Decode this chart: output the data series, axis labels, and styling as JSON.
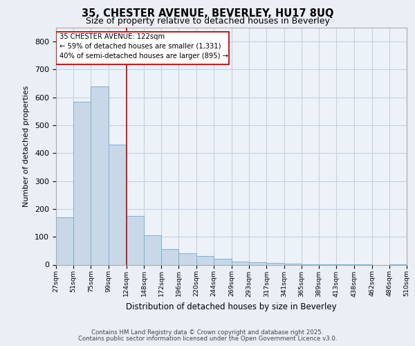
{
  "title_line1": "35, CHESTER AVENUE, BEVERLEY, HU17 8UQ",
  "title_line2": "Size of property relative to detached houses in Beverley",
  "xlabel": "Distribution of detached houses by size in Beverley",
  "ylabel": "Number of detached properties",
  "footer_line1": "Contains HM Land Registry data © Crown copyright and database right 2025.",
  "footer_line2": "Contains public sector information licensed under the Open Government Licence v3.0.",
  "annotation_line1": "35 CHESTER AVENUE: 122sqm",
  "annotation_line2": "← 59% of detached houses are smaller (1,331)",
  "annotation_line3": "40% of semi-detached houses are larger (895) →",
  "property_size_sqm": 122,
  "bin_edges": [
    27,
    51,
    75,
    99,
    124,
    148,
    172,
    196,
    220,
    244,
    269,
    293,
    317,
    341,
    365,
    389,
    413,
    438,
    462,
    486,
    510
  ],
  "bar_heights": [
    170,
    585,
    640,
    430,
    175,
    105,
    55,
    40,
    30,
    20,
    10,
    8,
    5,
    3,
    2,
    1,
    1,
    1,
    0,
    1
  ],
  "bar_color": "#c8d8e8",
  "bar_edge_color": "#7ab0d4",
  "vline_color": "#cc0000",
  "vline_x": 124,
  "background_color": "#eaeef5",
  "plot_bg_color": "#edf1f8",
  "grid_color": "#c8d0e0",
  "annotation_box_color": "#cc0000",
  "ylim": [
    0,
    850
  ],
  "yticks": [
    0,
    100,
    200,
    300,
    400,
    500,
    600,
    700,
    800
  ]
}
